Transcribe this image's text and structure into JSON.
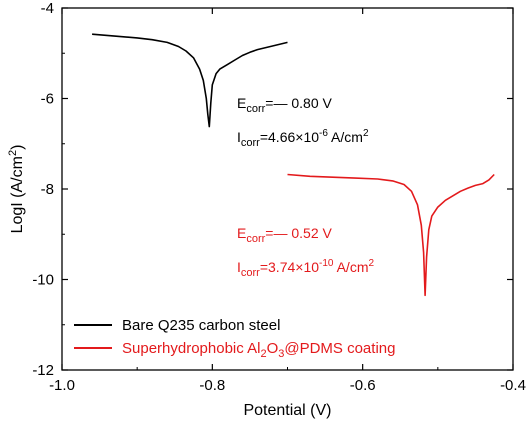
{
  "chart_data": {
    "type": "line",
    "xlabel": "Potential (V)",
    "ylabel_parts": {
      "base": "LogI (A/cm",
      "sup": "2",
      "end": ")"
    },
    "xlim": [
      -1.0,
      -0.4
    ],
    "ylim": [
      -12,
      -4
    ],
    "x_ticks": [
      -1.0,
      -0.8,
      -0.6,
      -0.4
    ],
    "x_tick_labels": [
      "-1.0",
      "-0.8",
      "-0.6",
      "-0.4"
    ],
    "y_ticks": [
      -12,
      -10,
      -8,
      -6,
      -4
    ],
    "y_tick_labels": [
      "-12",
      "-10",
      "-8",
      "-6",
      "-4"
    ],
    "grid": false,
    "legend_position": "bottom-left",
    "series": [
      {
        "name_parts": {
          "text": "Bare Q235 carbon steel"
        },
        "color": "#000000",
        "x": [
          -0.96,
          -0.93,
          -0.9,
          -0.88,
          -0.86,
          -0.845,
          -0.835,
          -0.825,
          -0.817,
          -0.812,
          -0.808,
          -0.806,
          -0.804,
          -0.802,
          -0.8,
          -0.795,
          -0.79,
          -0.78,
          -0.77,
          -0.76,
          -0.75,
          -0.74,
          -0.72,
          -0.7
        ],
        "y": [
          -4.58,
          -4.62,
          -4.66,
          -4.7,
          -4.76,
          -4.85,
          -4.95,
          -5.1,
          -5.35,
          -5.6,
          -6.0,
          -6.35,
          -6.62,
          -6.1,
          -5.7,
          -5.45,
          -5.35,
          -5.25,
          -5.15,
          -5.05,
          -4.98,
          -4.92,
          -4.84,
          -4.76
        ]
      },
      {
        "name_parts": {
          "pre": "Superhydrophobic Al",
          "sub1": "2",
          "mid": "O",
          "sub2": "3",
          "post": "@PDMS coating"
        },
        "color": "#e31a1c",
        "x": [
          -0.7,
          -0.67,
          -0.64,
          -0.61,
          -0.58,
          -0.56,
          -0.545,
          -0.535,
          -0.527,
          -0.522,
          -0.519,
          -0.517,
          -0.515,
          -0.512,
          -0.508,
          -0.5,
          -0.49,
          -0.48,
          -0.47,
          -0.46,
          -0.45,
          -0.44,
          -0.432,
          -0.425
        ],
        "y": [
          -7.68,
          -7.72,
          -7.74,
          -7.76,
          -7.78,
          -7.82,
          -7.9,
          -8.05,
          -8.35,
          -8.8,
          -9.4,
          -10.35,
          -9.5,
          -8.9,
          -8.6,
          -8.4,
          -8.25,
          -8.15,
          -8.05,
          -7.98,
          -7.92,
          -7.88,
          -7.8,
          -7.68
        ]
      }
    ],
    "annotations": [
      {
        "color": "#000000",
        "ecorr_value": "=— 0.80 V",
        "icorr_value": "=4.66×10",
        "icorr_exp": "-6",
        "icorr_unit": " A/cm",
        "icorr_unit_exp": "2"
      },
      {
        "color": "#e31a1c",
        "ecorr_value": "=— 0.52 V",
        "icorr_value": "=3.74×10",
        "icorr_exp": "-10",
        "icorr_unit": " A/cm",
        "icorr_unit_exp": "2"
      }
    ],
    "annotation_symbols": {
      "e_base": "E",
      "e_sub": "corr",
      "i_base": "I",
      "i_sub": "corr"
    }
  }
}
